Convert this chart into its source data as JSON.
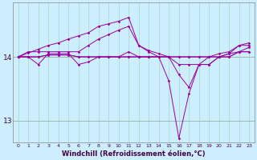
{
  "xlabel": "Windchill (Refroidissement éolien,°C)",
  "background_color": "#cceeff",
  "line_color": "#990099",
  "grid_color": "#aaddcc",
  "xlim": [
    -0.5,
    23.5
  ],
  "ylim": [
    12.65,
    14.85
  ],
  "yticks": [
    13,
    14
  ],
  "xticks": [
    0,
    1,
    2,
    3,
    4,
    5,
    6,
    7,
    8,
    9,
    10,
    11,
    12,
    13,
    14,
    15,
    16,
    17,
    18,
    19,
    20,
    21,
    22,
    23
  ],
  "series": [
    [
      14.0,
      14.08,
      14.08,
      14.08,
      14.08,
      14.08,
      14.08,
      14.18,
      14.28,
      14.35,
      14.42,
      14.48,
      14.18,
      14.08,
      14.0,
      14.0,
      13.88,
      13.88,
      13.88,
      14.0,
      14.05,
      14.08,
      14.18,
      14.18
    ],
    [
      14.0,
      14.0,
      14.0,
      14.03,
      14.03,
      14.03,
      14.0,
      14.0,
      14.0,
      14.0,
      14.0,
      14.0,
      14.0,
      14.0,
      14.0,
      14.0,
      14.0,
      14.0,
      14.0,
      14.0,
      14.0,
      14.0,
      14.08,
      14.08
    ],
    [
      14.0,
      14.06,
      14.12,
      14.18,
      14.22,
      14.28,
      14.33,
      14.38,
      14.48,
      14.52,
      14.56,
      14.62,
      14.18,
      14.1,
      14.05,
      14.0,
      13.72,
      13.52,
      13.88,
      13.88,
      14.0,
      14.05,
      14.18,
      14.22
    ],
    [
      14.0,
      14.0,
      13.88,
      14.05,
      14.05,
      14.05,
      13.88,
      13.92,
      14.0,
      14.0,
      14.0,
      14.08,
      14.0,
      14.0,
      14.0,
      13.62,
      12.72,
      13.42,
      13.88,
      13.88,
      14.0,
      14.05,
      14.08,
      14.15
    ],
    [
      14.0,
      14.0,
      14.0,
      14.03,
      14.03,
      14.03,
      14.0,
      14.0,
      14.0,
      14.0,
      14.0,
      14.0,
      14.0,
      14.0,
      14.0,
      14.0,
      14.0,
      14.0,
      14.0,
      14.0,
      14.0,
      14.0,
      14.08,
      14.08
    ]
  ]
}
